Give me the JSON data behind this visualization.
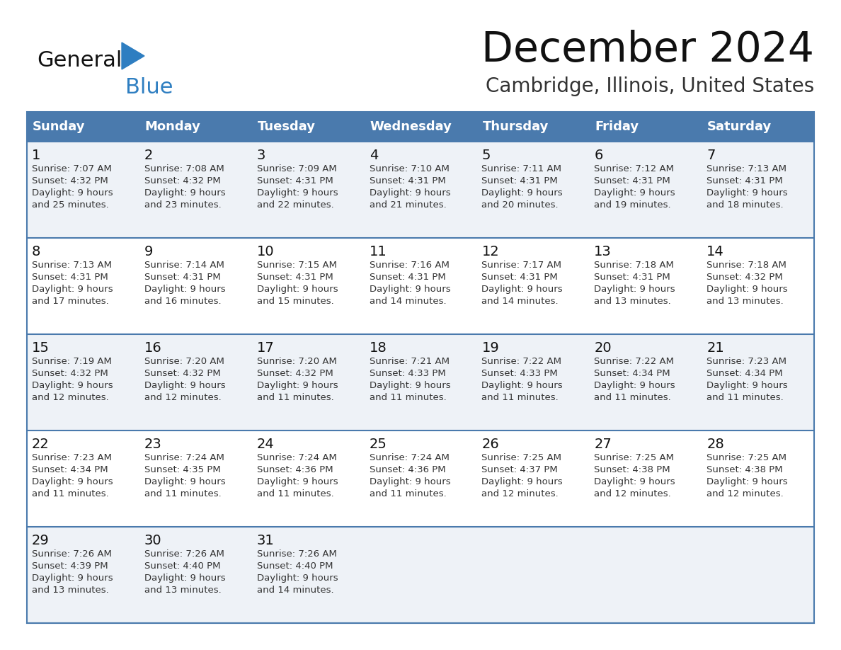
{
  "title": "December 2024",
  "subtitle": "Cambridge, Illinois, United States",
  "days_of_week": [
    "Sunday",
    "Monday",
    "Tuesday",
    "Wednesday",
    "Thursday",
    "Friday",
    "Saturday"
  ],
  "header_bg_color": "#4a7aad",
  "header_text_color": "#ffffff",
  "row_bg_odd": "#eef2f7",
  "row_bg_even": "#ffffff",
  "grid_line_color": "#4a7aad",
  "day_number_color": "#111111",
  "cell_text_color": "#333333",
  "logo_general_color": "#111111",
  "logo_blue_color": "#2e7ec1",
  "logo_triangle_color": "#2e7ec1",
  "calendar_data": [
    [
      {
        "day": 1,
        "sunrise": "7:07 AM",
        "sunset": "4:32 PM",
        "daylight_min": "25"
      },
      {
        "day": 2,
        "sunrise": "7:08 AM",
        "sunset": "4:32 PM",
        "daylight_min": "23"
      },
      {
        "day": 3,
        "sunrise": "7:09 AM",
        "sunset": "4:31 PM",
        "daylight_min": "22"
      },
      {
        "day": 4,
        "sunrise": "7:10 AM",
        "sunset": "4:31 PM",
        "daylight_min": "21"
      },
      {
        "day": 5,
        "sunrise": "7:11 AM",
        "sunset": "4:31 PM",
        "daylight_min": "20"
      },
      {
        "day": 6,
        "sunrise": "7:12 AM",
        "sunset": "4:31 PM",
        "daylight_min": "19"
      },
      {
        "day": 7,
        "sunrise": "7:13 AM",
        "sunset": "4:31 PM",
        "daylight_min": "18"
      }
    ],
    [
      {
        "day": 8,
        "sunrise": "7:13 AM",
        "sunset": "4:31 PM",
        "daylight_min": "17"
      },
      {
        "day": 9,
        "sunrise": "7:14 AM",
        "sunset": "4:31 PM",
        "daylight_min": "16"
      },
      {
        "day": 10,
        "sunrise": "7:15 AM",
        "sunset": "4:31 PM",
        "daylight_min": "15"
      },
      {
        "day": 11,
        "sunrise": "7:16 AM",
        "sunset": "4:31 PM",
        "daylight_min": "14"
      },
      {
        "day": 12,
        "sunrise": "7:17 AM",
        "sunset": "4:31 PM",
        "daylight_min": "14"
      },
      {
        "day": 13,
        "sunrise": "7:18 AM",
        "sunset": "4:31 PM",
        "daylight_min": "13"
      },
      {
        "day": 14,
        "sunrise": "7:18 AM",
        "sunset": "4:32 PM",
        "daylight_min": "13"
      }
    ],
    [
      {
        "day": 15,
        "sunrise": "7:19 AM",
        "sunset": "4:32 PM",
        "daylight_min": "12"
      },
      {
        "day": 16,
        "sunrise": "7:20 AM",
        "sunset": "4:32 PM",
        "daylight_min": "12"
      },
      {
        "day": 17,
        "sunrise": "7:20 AM",
        "sunset": "4:32 PM",
        "daylight_min": "11"
      },
      {
        "day": 18,
        "sunrise": "7:21 AM",
        "sunset": "4:33 PM",
        "daylight_min": "11"
      },
      {
        "day": 19,
        "sunrise": "7:22 AM",
        "sunset": "4:33 PM",
        "daylight_min": "11"
      },
      {
        "day": 20,
        "sunrise": "7:22 AM",
        "sunset": "4:34 PM",
        "daylight_min": "11"
      },
      {
        "day": 21,
        "sunrise": "7:23 AM",
        "sunset": "4:34 PM",
        "daylight_min": "11"
      }
    ],
    [
      {
        "day": 22,
        "sunrise": "7:23 AM",
        "sunset": "4:34 PM",
        "daylight_min": "11"
      },
      {
        "day": 23,
        "sunrise": "7:24 AM",
        "sunset": "4:35 PM",
        "daylight_min": "11"
      },
      {
        "day": 24,
        "sunrise": "7:24 AM",
        "sunset": "4:36 PM",
        "daylight_min": "11"
      },
      {
        "day": 25,
        "sunrise": "7:24 AM",
        "sunset": "4:36 PM",
        "daylight_min": "11"
      },
      {
        "day": 26,
        "sunrise": "7:25 AM",
        "sunset": "4:37 PM",
        "daylight_min": "12"
      },
      {
        "day": 27,
        "sunrise": "7:25 AM",
        "sunset": "4:38 PM",
        "daylight_min": "12"
      },
      {
        "day": 28,
        "sunrise": "7:25 AM",
        "sunset": "4:38 PM",
        "daylight_min": "12"
      }
    ],
    [
      {
        "day": 29,
        "sunrise": "7:26 AM",
        "sunset": "4:39 PM",
        "daylight_min": "13"
      },
      {
        "day": 30,
        "sunrise": "7:26 AM",
        "sunset": "4:40 PM",
        "daylight_min": "13"
      },
      {
        "day": 31,
        "sunrise": "7:26 AM",
        "sunset": "4:40 PM",
        "daylight_min": "14"
      },
      null,
      null,
      null,
      null
    ]
  ]
}
